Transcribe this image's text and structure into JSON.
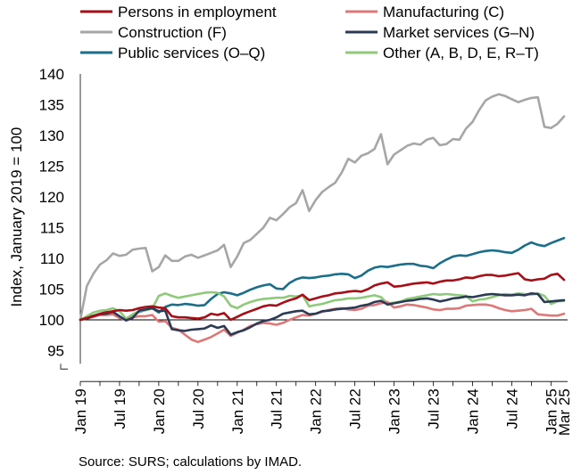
{
  "chart_data": {
    "type": "line",
    "ylabel": "Index, January 2019 = 100",
    "xlabel": "",
    "ylim": [
      92,
      140
    ],
    "yticks": [
      95,
      100,
      105,
      110,
      115,
      120,
      125,
      130,
      135,
      140
    ],
    "x_start": "Jan 19",
    "x_tick_labels": [
      "Jan 19",
      "Jul 19",
      "Jan 20",
      "Jul 20",
      "Jan 21",
      "Jul 21",
      "Jan 22",
      "Jul 22",
      "Jan 23",
      "Jul 23",
      "Jan 24",
      "Jul 24",
      "Jan 25",
      "Mar 25"
    ],
    "reference_line": 100,
    "grid": false,
    "legend_position": "top",
    "series": [
      {
        "name": "Persons in employment",
        "color": "#a50f15",
        "values": [
          100,
          100.3,
          100.6,
          101.0,
          101.2,
          101.4,
          101.6,
          101.5,
          101.6,
          101.9,
          102.1,
          102.2,
          102.0,
          101.9,
          100.6,
          100.4,
          100.4,
          100.3,
          100.2,
          100.4,
          101.0,
          100.8,
          101.1,
          100.0,
          100.5,
          101.0,
          101.4,
          101.8,
          102.2,
          102.4,
          102.3,
          102.8,
          103.2,
          103.5,
          104.1,
          103.2,
          103.5,
          103.8,
          104.0,
          104.3,
          104.4,
          104.6,
          104.7,
          104.6,
          105.0,
          105.6,
          105.9,
          106.1,
          105.4,
          105.5,
          105.7,
          105.9,
          106.0,
          106.1,
          105.9,
          106.2,
          106.4,
          106.4,
          106.6,
          106.9,
          106.8,
          107.1,
          107.3,
          107.3,
          107.1,
          107.2,
          107.4,
          107.6,
          106.6,
          106.4,
          106.6,
          106.7,
          107.3,
          107.5,
          106.5
        ]
      },
      {
        "name": "Manufacturing (C)",
        "color": "#e07777",
        "values": [
          100,
          100.3,
          100.5,
          100.8,
          100.8,
          100.9,
          100.3,
          100.0,
          100.4,
          100.6,
          100.6,
          100.8,
          99.7,
          99.8,
          98.7,
          98.4,
          97.6,
          96.8,
          96.4,
          96.8,
          97.2,
          97.8,
          98.4,
          97.4,
          97.9,
          98.4,
          99.0,
          99.3,
          99.5,
          99.4,
          99.2,
          99.5,
          100.0,
          100.4,
          100.8,
          100.7,
          101.0,
          101.3,
          101.6,
          101.8,
          101.9,
          101.7,
          101.6,
          101.8,
          102.3,
          102.4,
          102.7,
          102.9,
          102.0,
          102.2,
          102.5,
          102.4,
          102.2,
          102.0,
          101.7,
          101.6,
          101.8,
          101.8,
          101.9,
          102.3,
          102.4,
          102.5,
          102.5,
          102.3,
          101.9,
          101.6,
          101.4,
          101.5,
          101.6,
          101.8,
          100.9,
          100.8,
          100.7,
          100.7,
          101.0
        ]
      },
      {
        "name": "Construction (F)",
        "color": "#a6a6a6",
        "values": [
          100,
          105.5,
          107.5,
          109.0,
          109.7,
          110.8,
          110.4,
          110.6,
          111.4,
          111.6,
          111.7,
          107.9,
          108.6,
          110.5,
          109.6,
          109.6,
          110.3,
          110.6,
          110.1,
          110.5,
          110.9,
          111.3,
          112.2,
          108.6,
          110.3,
          112.5,
          113.0,
          114.0,
          115.0,
          116.6,
          116.2,
          117.2,
          118.3,
          119.0,
          121.1,
          117.7,
          119.5,
          120.8,
          121.6,
          122.3,
          124.0,
          126.2,
          125.6,
          126.7,
          127.1,
          127.8,
          130.2,
          125.3,
          126.9,
          127.6,
          128.3,
          128.7,
          128.5,
          129.3,
          129.6,
          128.4,
          128.6,
          129.4,
          129.3,
          131.1,
          132.2,
          134.1,
          135.7,
          136.3,
          136.7,
          136.4,
          135.9,
          135.4,
          135.8,
          136.1,
          136.2,
          131.4,
          131.2,
          131.9,
          133.1
        ]
      },
      {
        "name": "Market services (G–N)",
        "color": "#2b3a55",
        "values": [
          100,
          100.2,
          100.6,
          100.9,
          101.0,
          101.3,
          100.6,
          99.9,
          100.3,
          101.5,
          101.7,
          101.9,
          101.4,
          101.5,
          98.5,
          98.3,
          98.2,
          98.4,
          98.5,
          98.6,
          99.1,
          98.7,
          99.0,
          97.6,
          98.0,
          98.3,
          98.8,
          99.4,
          99.8,
          100.0,
          100.4,
          101.0,
          101.2,
          101.4,
          101.5,
          100.9,
          101.0,
          101.4,
          101.5,
          101.7,
          101.8,
          101.9,
          102.0,
          102.3,
          102.5,
          102.9,
          103.1,
          102.5,
          102.7,
          102.9,
          103.1,
          103.2,
          103.4,
          103.5,
          103.3,
          103.0,
          103.2,
          103.5,
          103.6,
          103.8,
          103.7,
          103.9,
          104.1,
          104.2,
          104.1,
          104.0,
          104.0,
          104.1,
          104.0,
          104.3,
          104.2,
          102.9,
          103.0,
          103.1,
          103.2
        ]
      },
      {
        "name": "Public services (O–Q)",
        "color": "#1b6e8a",
        "values": [
          100,
          100.4,
          100.7,
          101.0,
          101.3,
          101.2,
          100.3,
          100.0,
          100.8,
          101.3,
          101.6,
          101.9,
          101.2,
          102.1,
          102.5,
          102.4,
          102.6,
          102.5,
          102.3,
          102.4,
          103.4,
          104.2,
          104.5,
          104.3,
          104.0,
          104.4,
          104.9,
          105.3,
          105.6,
          105.8,
          105.1,
          105.0,
          106.0,
          106.6,
          106.9,
          106.8,
          106.9,
          107.1,
          107.2,
          107.4,
          107.5,
          107.4,
          106.8,
          107.2,
          108.0,
          108.5,
          108.7,
          108.6,
          108.8,
          109.0,
          109.1,
          109.1,
          108.8,
          108.7,
          108.4,
          109.2,
          109.8,
          110.3,
          110.5,
          110.4,
          110.7,
          111.0,
          111.2,
          111.3,
          111.2,
          111.0,
          110.9,
          111.4,
          112.1,
          112.6,
          112.2,
          112.0,
          112.5,
          112.9,
          113.3
        ]
      },
      {
        "name": "Other (A, B, D, E, R–T)",
        "color": "#8fc97a",
        "values": [
          100,
          100.6,
          101.2,
          101.5,
          101.6,
          101.9,
          101.4,
          100.2,
          100.9,
          101.4,
          101.6,
          101.8,
          103.9,
          104.3,
          103.9,
          103.6,
          103.8,
          104.0,
          104.2,
          104.4,
          104.5,
          104.4,
          103.8,
          102.3,
          101.9,
          102.5,
          102.9,
          103.2,
          103.4,
          103.5,
          103.6,
          103.6,
          103.9,
          103.8,
          104.0,
          102.2,
          102.4,
          102.6,
          102.9,
          103.2,
          103.3,
          103.5,
          103.5,
          103.6,
          103.8,
          104.0,
          103.7,
          102.7,
          102.8,
          103.0,
          103.4,
          103.6,
          103.8,
          104.0,
          104.2,
          104.1,
          104.2,
          104.1,
          104.0,
          103.9,
          103.0,
          103.3,
          103.4,
          103.7,
          104.0,
          104.2,
          104.1,
          104.3,
          104.2,
          104.1,
          104.3,
          103.9,
          102.6,
          103.0,
          103.1
        ]
      }
    ],
    "legend_order": [
      0,
      1,
      2,
      3,
      4,
      5
    ]
  },
  "source": "Source: SURS; calculations by IMAD."
}
